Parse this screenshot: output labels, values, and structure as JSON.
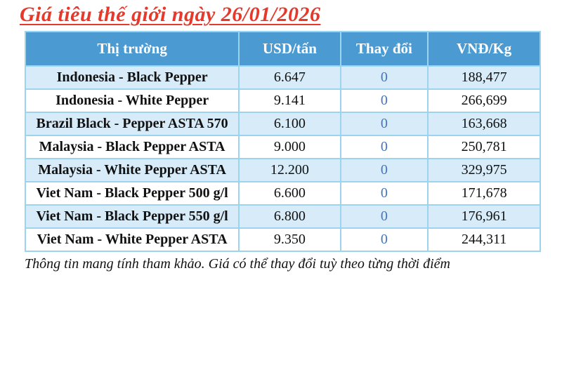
{
  "title": "Giá tiêu thế giới ngày 26/01/2026",
  "colors": {
    "title_red": "#e6392b",
    "header_bg": "#4b9ad2",
    "header_text": "#ffffff",
    "alt_row_bg": "#d7ecf8",
    "border": "#9cd3ef",
    "change_value": "#4472c4"
  },
  "table": {
    "columns": [
      "Thị trường",
      "USD/tấn",
      "Thay đổi",
      "VNĐ/Kg"
    ],
    "rows": [
      {
        "market": "Indonesia - Black Pepper",
        "usd": "6.647",
        "change": "0",
        "vnd": "188,477"
      },
      {
        "market": "Indonesia - White Pepper",
        "usd": "9.141",
        "change": "0",
        "vnd": "266,699"
      },
      {
        "market": "Brazil Black - Pepper ASTA 570",
        "usd": "6.100",
        "change": "0",
        "vnd": "163,668"
      },
      {
        "market": "Malaysia - Black Pepper ASTA",
        "usd": "9.000",
        "change": "0",
        "vnd": "250,781"
      },
      {
        "market": "Malaysia - White Pepper ASTA",
        "usd": "12.200",
        "change": "0",
        "vnd": "329,975"
      },
      {
        "market": "Viet Nam - Black Pepper 500 g/l",
        "usd": "6.600",
        "change": "0",
        "vnd": "171,678"
      },
      {
        "market": "Viet Nam - Black Pepper 550 g/l",
        "usd": "6.800",
        "change": "0",
        "vnd": "176,961"
      },
      {
        "market": "Viet Nam - White Pepper ASTA",
        "usd": "9.350",
        "change": "0",
        "vnd": "244,311"
      }
    ]
  },
  "footer": "Thông tin mang tính tham khảo. Giá có thể thay đổi tuỳ theo từng thời điểm"
}
